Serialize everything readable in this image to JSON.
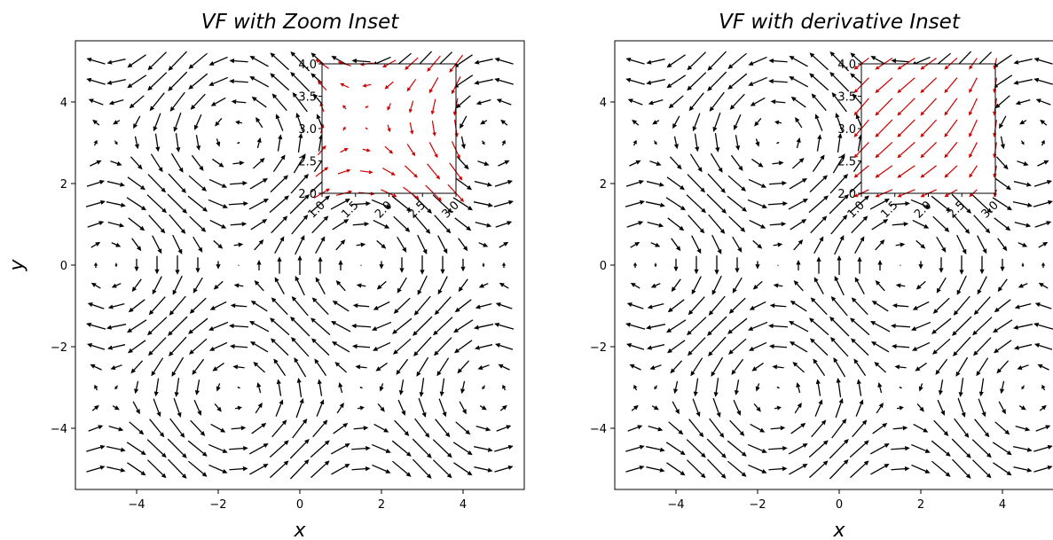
{
  "chart_data": [
    {
      "type": "quiver",
      "title": "VF with Zoom Inset",
      "xlabel": "x",
      "ylabel": "y",
      "xlim": [
        -5.5,
        5.5
      ],
      "ylim": [
        -5.5,
        5.5
      ],
      "xticks": [
        -4,
        -2,
        0,
        2,
        4
      ],
      "yticks": [
        -4,
        -2,
        0,
        2,
        4
      ],
      "xtick_labels": [
        "−4",
        "−2",
        "0",
        "2",
        "4"
      ],
      "ytick_labels": [
        "−4",
        "−2",
        "0",
        "2",
        "4"
      ],
      "grid": false,
      "arrow_color": "#000000",
      "vector_field": {
        "u": "sin(y)",
        "v": "cos(x)"
      },
      "grid_points": {
        "x_range": [
          -5,
          5
        ],
        "y_range": [
          -5,
          5
        ],
        "n": 21
      },
      "inset": {
        "kind": "zoom",
        "location": "upper-right",
        "xlim": [
          1,
          3
        ],
        "ylim": [
          2,
          4
        ],
        "xticks": [
          1.0,
          1.5,
          2.0,
          2.5,
          3.0
        ],
        "yticks": [
          2.0,
          2.5,
          3.0,
          3.5,
          4.0
        ],
        "xtick_labels": [
          "1.0",
          "1.5",
          "2.0",
          "2.5",
          "3.0"
        ],
        "ytick_labels": [
          "2.0",
          "2.5",
          "3.0",
          "3.5",
          "4.0"
        ],
        "arrow_color": "#cc0000",
        "vector_field": {
          "u": "sin(y)",
          "v": "cos(x)"
        },
        "grid_points": {
          "x_range": [
            1,
            3
          ],
          "y_range": [
            2,
            4
          ],
          "n": 7
        }
      }
    },
    {
      "type": "quiver",
      "title": "VF with derivative Inset",
      "xlabel": "x",
      "ylabel": "",
      "xlim": [
        -5.5,
        5.5
      ],
      "ylim": [
        -5.5,
        5.5
      ],
      "xticks": [
        -4,
        -2,
        0,
        2,
        4
      ],
      "yticks": [
        -4,
        -2,
        0,
        2,
        4
      ],
      "xtick_labels": [
        "−4",
        "−2",
        "0",
        "2",
        "4"
      ],
      "ytick_labels": [
        "−4",
        "−2",
        "0",
        "2",
        "4"
      ],
      "grid": false,
      "arrow_color": "#000000",
      "vector_field": {
        "u": "sin(y)",
        "v": "cos(x)"
      },
      "grid_points": {
        "x_range": [
          -5,
          5
        ],
        "y_range": [
          -5,
          5
        ],
        "n": 21
      },
      "inset": {
        "kind": "derivative",
        "location": "upper-right",
        "xlim": [
          1,
          3
        ],
        "ylim": [
          2,
          4
        ],
        "xticks": [
          1.0,
          1.5,
          2.0,
          2.5,
          3.0
        ],
        "yticks": [
          2.0,
          2.5,
          3.0,
          3.5,
          4.0
        ],
        "xtick_labels": [
          "1.0",
          "1.5",
          "2.0",
          "2.5",
          "3.0"
        ],
        "ytick_labels": [
          "2.0",
          "2.5",
          "3.0",
          "3.5",
          "4.0"
        ],
        "arrow_color": "#cc0000",
        "vector_field": {
          "u": "-sin(x)",
          "v": "cos(y)"
        },
        "grid_points": {
          "x_range": [
            1,
            3
          ],
          "y_range": [
            2,
            4
          ],
          "n": 7
        }
      }
    }
  ]
}
